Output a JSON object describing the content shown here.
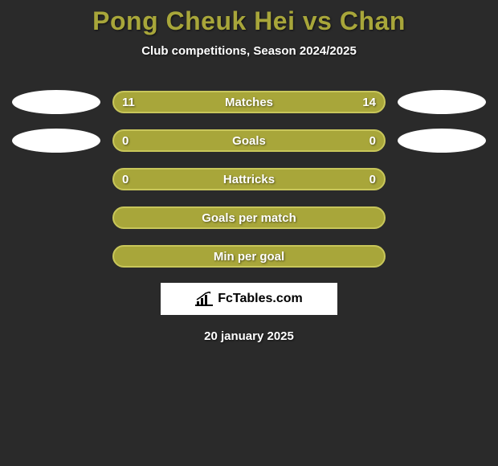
{
  "title": "Pong Cheuk Hei vs Chan",
  "subtitle": "Club competitions, Season 2024/2025",
  "colors": {
    "background": "#2a2a2a",
    "bar": "#a8a63a",
    "bar_border": "#c8c65a",
    "title_color": "#a8a63a",
    "text": "#ffffff",
    "ellipse": "#ffffff",
    "logo_bg": "#ffffff",
    "logo_text": "#000000"
  },
  "rows": [
    {
      "label": "Matches",
      "left": "11",
      "right": "14",
      "show_ellipses": true
    },
    {
      "label": "Goals",
      "left": "0",
      "right": "0",
      "show_ellipses": true
    },
    {
      "label": "Hattricks",
      "left": "0",
      "right": "0",
      "show_ellipses": false
    },
    {
      "label": "Goals per match",
      "left": "",
      "right": "",
      "show_ellipses": false
    },
    {
      "label": "Min per goal",
      "left": "",
      "right": "",
      "show_ellipses": false
    }
  ],
  "logo_text": "FcTables.com",
  "date": "20 january 2025"
}
